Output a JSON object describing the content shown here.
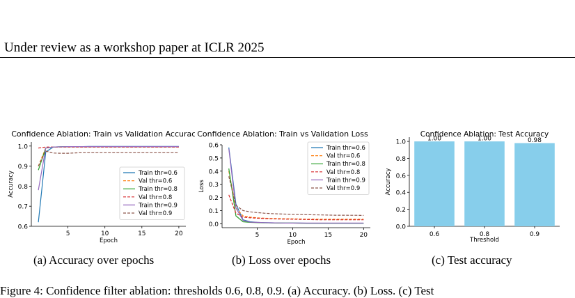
{
  "header": {
    "text": "Under review as a workshop paper at ICLR 2025"
  },
  "captions": {
    "a": "(a)  Accuracy over epochs",
    "b": "(b)  Loss over epochs",
    "c": "(c)  Test accuracy"
  },
  "figure_caption_partial": "Figure 4:  Confidence filter ablation: thresholds 0.6, 0.8, 0.9.  (a)  Accuracy.  (b)  Loss.  (c)  Test",
  "chart_data": [
    {
      "type": "line",
      "title": "Confidence Ablation: Train vs Validation Accuracy",
      "xlabel": "Epoch",
      "ylabel": "Accuracy",
      "xlim": [
        0.05,
        20.95
      ],
      "ylim": [
        0.6,
        1.02
      ],
      "xticks": [
        5,
        10,
        15,
        20
      ],
      "yticks": [
        0.6,
        0.7,
        0.8,
        0.9,
        1.0
      ],
      "ytick_labels": [
        "0.6",
        "0.7",
        "0.8",
        "0.9",
        "1.0"
      ],
      "legend": "lower-right",
      "x": [
        1,
        2,
        3,
        4,
        5,
        6,
        7,
        8,
        9,
        10,
        11,
        12,
        13,
        14,
        15,
        16,
        17,
        18,
        19,
        20
      ],
      "series": [
        {
          "name": "Train thr=0.6",
          "color": "#1f77b4",
          "dash": "solid",
          "values": [
            0.62,
            0.97,
            0.995,
            0.996,
            0.997,
            0.997,
            0.997,
            0.998,
            0.998,
            0.998,
            0.998,
            0.998,
            0.998,
            0.998,
            0.998,
            0.998,
            0.998,
            0.998,
            0.998,
            0.998
          ]
        },
        {
          "name": "Val thr=0.6",
          "color": "#ff7f0e",
          "dash": "dashed",
          "values": [
            0.9,
            0.99,
            0.995,
            0.995,
            0.995,
            0.995,
            0.995,
            0.995,
            0.995,
            0.995,
            0.995,
            0.995,
            0.995,
            0.995,
            0.995,
            0.995,
            0.995,
            0.995,
            0.995,
            0.995
          ]
        },
        {
          "name": "Train thr=0.8",
          "color": "#2ca02c",
          "dash": "solid",
          "values": [
            0.88,
            0.99,
            0.995,
            0.996,
            0.997,
            0.997,
            0.997,
            0.997,
            0.997,
            0.997,
            0.997,
            0.997,
            0.997,
            0.997,
            0.997,
            0.997,
            0.997,
            0.997,
            0.997,
            0.997
          ]
        },
        {
          "name": "Val thr=0.8",
          "color": "#d62728",
          "dash": "dashed",
          "values": [
            0.99,
            0.995,
            0.995,
            0.995,
            0.995,
            0.995,
            0.995,
            0.995,
            0.995,
            0.995,
            0.995,
            0.995,
            0.995,
            0.995,
            0.995,
            0.995,
            0.995,
            0.995,
            0.995,
            0.995
          ]
        },
        {
          "name": "Train thr=0.9",
          "color": "#9467bd",
          "dash": "solid",
          "values": [
            0.78,
            0.99,
            0.995,
            0.996,
            0.997,
            0.997,
            0.997,
            0.997,
            0.997,
            0.997,
            0.997,
            0.997,
            0.997,
            0.997,
            0.997,
            0.997,
            0.997,
            0.997,
            0.997,
            0.997
          ]
        },
        {
          "name": "Val thr=0.9",
          "color": "#8c564b",
          "dash": "dashed",
          "values": [
            0.9,
            0.975,
            0.965,
            0.964,
            0.964,
            0.966,
            0.967,
            0.967,
            0.967,
            0.967,
            0.967,
            0.967,
            0.967,
            0.967,
            0.967,
            0.967,
            0.967,
            0.967,
            0.967,
            0.967
          ]
        }
      ]
    },
    {
      "type": "line",
      "title": "Confidence Ablation: Train vs Validation Loss",
      "xlabel": "Epoch",
      "ylabel": "Loss",
      "xlim": [
        0.05,
        20.95
      ],
      "ylim": [
        -0.03,
        0.6
      ],
      "xticks": [
        5,
        10,
        15,
        20
      ],
      "yticks": [
        0.0,
        0.1,
        0.2,
        0.3,
        0.4,
        0.5,
        0.6
      ],
      "ytick_labels": [
        "0.0",
        "0.1",
        "0.2",
        "0.3",
        "0.4",
        "0.5",
        "0.6"
      ],
      "legend": "top-right",
      "x": [
        1,
        2,
        3,
        4,
        5,
        6,
        7,
        8,
        9,
        10,
        11,
        12,
        13,
        14,
        15,
        16,
        17,
        18,
        19,
        20
      ],
      "series": [
        {
          "name": "Train thr=0.6",
          "color": "#1f77b4",
          "dash": "solid",
          "values": [
            0.58,
            0.15,
            0.03,
            0.015,
            0.01,
            0.008,
            0.007,
            0.006,
            0.005,
            0.005,
            0.005,
            0.004,
            0.004,
            0.004,
            0.004,
            0.004,
            0.004,
            0.004,
            0.004,
            0.004
          ]
        },
        {
          "name": "Val thr=0.6",
          "color": "#ff7f0e",
          "dash": "dashed",
          "values": [
            0.4,
            0.12,
            0.06,
            0.05,
            0.045,
            0.042,
            0.04,
            0.039,
            0.038,
            0.037,
            0.036,
            0.035,
            0.035,
            0.034,
            0.034,
            0.034,
            0.034,
            0.034,
            0.034,
            0.034
          ]
        },
        {
          "name": "Train thr=0.8",
          "color": "#2ca02c",
          "dash": "solid",
          "values": [
            0.42,
            0.06,
            0.015,
            0.01,
            0.008,
            0.007,
            0.006,
            0.005,
            0.005,
            0.005,
            0.004,
            0.004,
            0.004,
            0.004,
            0.004,
            0.004,
            0.004,
            0.004,
            0.004,
            0.004
          ]
        },
        {
          "name": "Val thr=0.8",
          "color": "#d62728",
          "dash": "dashed",
          "values": [
            0.22,
            0.08,
            0.05,
            0.045,
            0.042,
            0.04,
            0.038,
            0.036,
            0.035,
            0.034,
            0.033,
            0.032,
            0.031,
            0.03,
            0.03,
            0.03,
            0.03,
            0.03,
            0.03,
            0.03
          ]
        },
        {
          "name": "Train thr=0.9",
          "color": "#9467bd",
          "dash": "solid",
          "values": [
            0.57,
            0.12,
            0.025,
            0.012,
            0.01,
            0.008,
            0.007,
            0.006,
            0.005,
            0.005,
            0.005,
            0.005,
            0.005,
            0.005,
            0.005,
            0.005,
            0.005,
            0.005,
            0.005,
            0.005
          ]
        },
        {
          "name": "Val thr=0.9",
          "color": "#8c564b",
          "dash": "dashed",
          "values": [
            0.36,
            0.14,
            0.1,
            0.09,
            0.085,
            0.08,
            0.077,
            0.075,
            0.073,
            0.071,
            0.07,
            0.069,
            0.068,
            0.067,
            0.066,
            0.065,
            0.065,
            0.064,
            0.064,
            0.063
          ]
        }
      ]
    },
    {
      "type": "bar",
      "title": "Confidence Ablation: Test Accuracy",
      "xlabel": "Threshold",
      "ylabel": "Accuracy",
      "categories": [
        "0.6",
        "0.8",
        "0.9"
      ],
      "values": [
        1.0,
        1.0,
        0.98
      ],
      "value_labels": [
        "1.00",
        "1.00",
        "0.98"
      ],
      "ylim": [
        0,
        1.05
      ],
      "yticks": [
        0.0,
        0.2,
        0.4,
        0.6,
        0.8,
        1.0
      ],
      "ytick_labels": [
        "0.0",
        "0.2",
        "0.4",
        "0.6",
        "0.8",
        "1.0"
      ],
      "color": "#87ceeb"
    }
  ]
}
